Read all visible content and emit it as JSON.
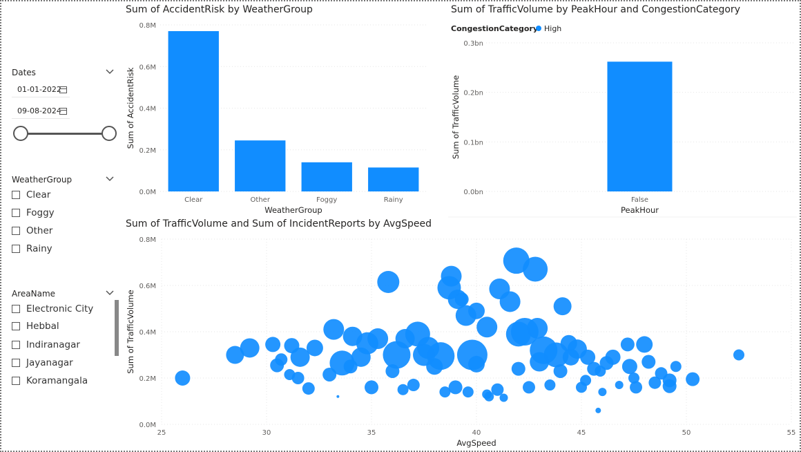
{
  "slicers": {
    "dates": {
      "title": "Dates",
      "start": "01-01-2022",
      "end": "09-08-2024"
    },
    "weather": {
      "title": "WeatherGroup",
      "items": [
        "Clear",
        "Foggy",
        "Other",
        "Rainy"
      ]
    },
    "area": {
      "title": "AreaName",
      "items": [
        "Electronic City",
        "Hebbal",
        "Indiranagar",
        "Jayanagar",
        "Koramangala"
      ]
    }
  },
  "colors": {
    "bar": "#118DFF",
    "text": "#252423",
    "axis": "#605E5C"
  },
  "charts": {
    "accident": {
      "title": "Sum of AccidentRisk by WeatherGroup"
    },
    "traffic": {
      "title": "Sum of TrafficVolume by PeakHour and CongestionCategory",
      "legend_title": "CongestionCategory",
      "legend_item": "High"
    },
    "scatter": {
      "title": "Sum of TrafficVolume and Sum of IncidentReports by AvgSpeed"
    }
  },
  "chart_data": [
    {
      "type": "bar",
      "title": "Sum of AccidentRisk by WeatherGroup",
      "xlabel": "WeatherGroup",
      "ylabel": "Sum of AccidentRisk",
      "categories": [
        "Clear",
        "Other",
        "Foggy",
        "Rainy"
      ],
      "values": [
        770000,
        245000,
        140000,
        115000
      ],
      "ylim": [
        0,
        800000
      ],
      "yticks": [
        "0.0M",
        "0.2M",
        "0.4M",
        "0.6M",
        "0.8M"
      ]
    },
    {
      "type": "bar",
      "title": "Sum of TrafficVolume by PeakHour and CongestionCategory",
      "xlabel": "PeakHour",
      "ylabel": "Sum of TrafficVolume",
      "categories": [
        "False"
      ],
      "series": [
        {
          "name": "High",
          "values": [
            262000000
          ]
        }
      ],
      "ylim": [
        0,
        300000000
      ],
      "yticks": [
        "0.0bn",
        "0.1bn",
        "0.2bn",
        "0.3bn"
      ],
      "legend": "top-left"
    },
    {
      "type": "scatter",
      "title": "Sum of TrafficVolume and Sum of IncidentReports by AvgSpeed",
      "xlabel": "AvgSpeed",
      "ylabel": "Sum of TrafficVolume",
      "xlim": [
        25,
        55
      ],
      "ylim": [
        0,
        800000
      ],
      "xticks": [
        "25",
        "30",
        "35",
        "40",
        "45",
        "50",
        "55"
      ],
      "yticks": [
        "0.0M",
        "0.2M",
        "0.4M",
        "0.6M",
        "0.8M"
      ],
      "points": [
        [
          26.0,
          200000,
          11
        ],
        [
          28.5,
          300000,
          13
        ],
        [
          29.2,
          330000,
          14
        ],
        [
          30.3,
          345000,
          11
        ],
        [
          30.5,
          255000,
          10
        ],
        [
          30.7,
          280000,
          9
        ],
        [
          31.1,
          215000,
          8
        ],
        [
          31.2,
          340000,
          11
        ],
        [
          31.5,
          200000,
          9
        ],
        [
          31.6,
          290000,
          14
        ],
        [
          32.0,
          155000,
          9
        ],
        [
          32.3,
          330000,
          12
        ],
        [
          33.2,
          410000,
          15
        ],
        [
          33.4,
          120000,
          2
        ],
        [
          33.6,
          265000,
          18
        ],
        [
          34.1,
          380000,
          14
        ],
        [
          34.8,
          350000,
          16
        ],
        [
          35.3,
          370000,
          15
        ],
        [
          35.8,
          615000,
          16
        ],
        [
          36.2,
          300000,
          20
        ],
        [
          36.6,
          370000,
          14
        ],
        [
          37.2,
          390000,
          18
        ],
        [
          37.7,
          330000,
          16
        ],
        [
          38.3,
          295000,
          20
        ],
        [
          38.7,
          590000,
          17
        ],
        [
          38.8,
          640000,
          15
        ],
        [
          39.1,
          540000,
          14
        ],
        [
          39.3,
          540000,
          10
        ],
        [
          39.5,
          470000,
          15
        ],
        [
          40.0,
          490000,
          12
        ],
        [
          39.8,
          300000,
          22
        ],
        [
          40.5,
          420000,
          15
        ],
        [
          41.1,
          585000,
          15
        ],
        [
          41.6,
          530000,
          15
        ],
        [
          41.9,
          707000,
          19
        ],
        [
          42.0,
          390000,
          18
        ],
        [
          42.3,
          400000,
          20
        ],
        [
          42.8,
          670000,
          18
        ],
        [
          42.9,
          415000,
          15
        ],
        [
          43.2,
          320000,
          20
        ],
        [
          43.8,
          300000,
          18
        ],
        [
          44.1,
          510000,
          13
        ],
        [
          44.4,
          350000,
          12
        ],
        [
          44.8,
          325000,
          14
        ],
        [
          45.3,
          290000,
          11
        ],
        [
          45.6,
          240000,
          10
        ],
        [
          45.8,
          60000,
          4
        ],
        [
          45.9,
          230000,
          8
        ],
        [
          46.2,
          265000,
          10
        ],
        [
          46.5,
          290000,
          11
        ],
        [
          46.8,
          170000,
          6
        ],
        [
          47.2,
          345000,
          10
        ],
        [
          47.3,
          250000,
          11
        ],
        [
          47.5,
          200000,
          8
        ],
        [
          47.6,
          160000,
          9
        ],
        [
          48.0,
          345000,
          12
        ],
        [
          48.2,
          270000,
          10
        ],
        [
          48.5,
          180000,
          9
        ],
        [
          48.8,
          220000,
          9
        ],
        [
          49.2,
          190000,
          10
        ],
        [
          49.2,
          165000,
          10
        ],
        [
          49.5,
          250000,
          8
        ],
        [
          50.3,
          195000,
          10
        ],
        [
          52.5,
          300000,
          8
        ],
        [
          34.0,
          250000,
          10
        ],
        [
          36.0,
          230000,
          10
        ],
        [
          38.0,
          250000,
          12
        ],
        [
          40.0,
          260000,
          12
        ],
        [
          42.0,
          240000,
          10
        ],
        [
          44.0,
          230000,
          10
        ],
        [
          35.0,
          160000,
          10
        ],
        [
          36.5,
          150000,
          8
        ],
        [
          37.0,
          170000,
          9
        ],
        [
          38.5,
          140000,
          8
        ],
        [
          39.0,
          160000,
          10
        ],
        [
          40.5,
          130000,
          7
        ],
        [
          41.0,
          150000,
          9
        ],
        [
          42.5,
          160000,
          9
        ],
        [
          43.5,
          170000,
          8
        ],
        [
          45.0,
          160000,
          8
        ],
        [
          41.3,
          115000,
          6
        ],
        [
          40.6,
          120000,
          7
        ],
        [
          39.6,
          140000,
          8
        ],
        [
          33.0,
          215000,
          10
        ],
        [
          34.5,
          290000,
          14
        ],
        [
          37.5,
          300000,
          16
        ],
        [
          43.0,
          270000,
          14
        ],
        [
          44.5,
          290000,
          12
        ],
        [
          45.2,
          190000,
          8
        ],
        [
          46.0,
          140000,
          6
        ]
      ]
    }
  ]
}
